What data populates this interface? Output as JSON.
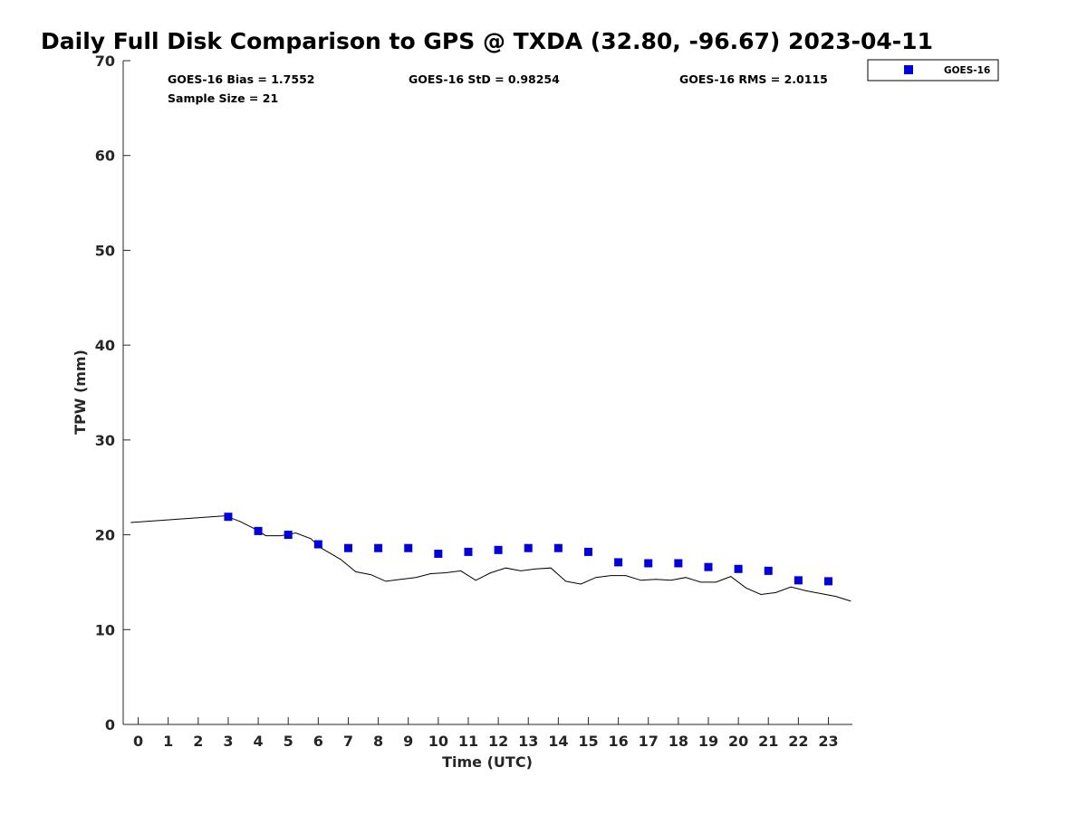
{
  "chart_data": {
    "type": "scatter",
    "title": "Daily Full Disk Comparison to GPS @ TXDA (32.80, -96.67) 2023-04-11",
    "xlabel": "Time (UTC)",
    "ylabel": "TPW (mm)",
    "xlim": [
      -0.5,
      23.8
    ],
    "ylim": [
      0,
      70
    ],
    "x_ticks": [
      "0",
      "1",
      "2",
      "3",
      "4",
      "5",
      "6",
      "7",
      "8",
      "9",
      "10",
      "11",
      "12",
      "13",
      "14",
      "15",
      "16",
      "17",
      "18",
      "19",
      "20",
      "21",
      "22",
      "23"
    ],
    "y_ticks": [
      "0",
      "10",
      "20",
      "30",
      "40",
      "50",
      "60",
      "70"
    ],
    "grid": false,
    "legend_position": "top-right",
    "stats": {
      "bias": "GOES-16 Bias = 1.7552",
      "std": "GOES-16 StD = 0.98254",
      "rms": "GOES-16 RMS = 2.0115",
      "sample": "Sample Size = 21"
    },
    "series": [
      {
        "name": "GOES-16",
        "kind": "scatter",
        "color": "#0000dd",
        "x": [
          3,
          4,
          5,
          6,
          7,
          8,
          9,
          10,
          11,
          12,
          13,
          14,
          15,
          16,
          17,
          18,
          19,
          20,
          21,
          22,
          23
        ],
        "y": [
          21.9,
          20.4,
          20.0,
          19.0,
          18.6,
          18.6,
          18.6,
          18.0,
          18.2,
          18.4,
          18.6,
          18.6,
          18.2,
          17.1,
          17.0,
          17.0,
          16.6,
          16.4,
          16.2,
          15.2,
          15.1
        ]
      },
      {
        "kind": "line",
        "color": "#000000",
        "x": [
          -0.25,
          2.9,
          3.4,
          3.9,
          4.25,
          4.75,
          5.25,
          5.75,
          6.1,
          6.75,
          7.25,
          7.75,
          8.25,
          8.75,
          9.25,
          9.75,
          10.25,
          10.75,
          11.25,
          11.75,
          12.25,
          12.75,
          13.25,
          13.75,
          14.25,
          14.75,
          15.25,
          15.75,
          16.25,
          16.75,
          17.25,
          17.75,
          18.25,
          18.75,
          19.25,
          19.75,
          20.25,
          20.75,
          21.25,
          21.75,
          22.25,
          22.75,
          23.25,
          23.75
        ],
        "y": [
          21.3,
          22.0,
          21.4,
          20.6,
          19.9,
          19.9,
          20.2,
          19.6,
          18.6,
          17.4,
          16.1,
          15.8,
          15.1,
          15.3,
          15.5,
          15.9,
          16.0,
          16.2,
          15.2,
          16.0,
          16.5,
          16.2,
          16.4,
          16.5,
          15.1,
          14.8,
          15.5,
          15.7,
          15.7,
          15.2,
          15.3,
          15.2,
          15.5,
          15.0,
          15.0,
          15.6,
          14.4,
          13.7,
          13.9,
          14.5,
          14.1,
          13.8,
          13.5,
          13.0
        ]
      }
    ]
  }
}
